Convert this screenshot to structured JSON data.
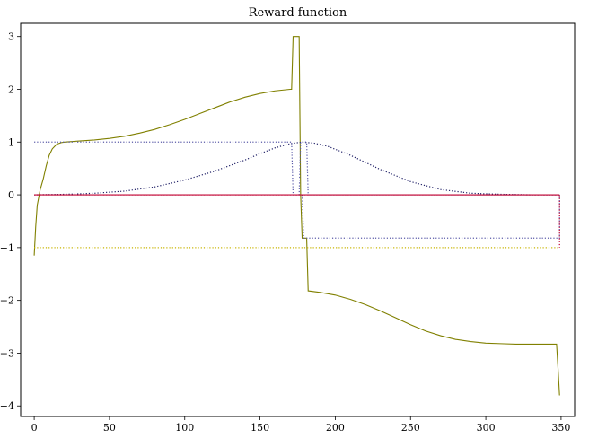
{
  "chart_data": {
    "type": "line",
    "title": "Reward function",
    "xlabel": "",
    "ylabel": "",
    "xlim": [
      -9,
      359
    ],
    "ylim": [
      -4.2,
      3.25
    ],
    "xticks": [
      0,
      50,
      100,
      150,
      200,
      250,
      300,
      350
    ],
    "yticks": [
      -4,
      -3,
      -2,
      -1,
      0,
      1,
      2,
      3
    ],
    "xtick_labels": [
      "0",
      "50",
      "100",
      "150",
      "200",
      "250",
      "300",
      "350"
    ],
    "ytick_labels": [
      "−4",
      "−3",
      "−2",
      "−1",
      "0",
      "1",
      "2",
      "3"
    ],
    "grid": false,
    "legend": "none",
    "series": [
      {
        "style": "solid",
        "color": "#808000",
        "points": [
          [
            0,
            -1.15
          ],
          [
            1,
            -0.6
          ],
          [
            2,
            -0.2
          ],
          [
            4,
            0.1
          ],
          [
            6,
            0.3
          ],
          [
            8,
            0.55
          ],
          [
            10,
            0.75
          ],
          [
            12,
            0.87
          ],
          [
            15,
            0.96
          ],
          [
            18,
            0.99
          ],
          [
            20,
            1.0
          ],
          [
            30,
            1.02
          ],
          [
            40,
            1.04
          ],
          [
            50,
            1.07
          ],
          [
            60,
            1.11
          ],
          [
            70,
            1.17
          ],
          [
            80,
            1.24
          ],
          [
            90,
            1.33
          ],
          [
            100,
            1.43
          ],
          [
            110,
            1.54
          ],
          [
            120,
            1.65
          ],
          [
            130,
            1.76
          ],
          [
            140,
            1.85
          ],
          [
            150,
            1.92
          ],
          [
            160,
            1.97
          ],
          [
            170,
            2.0
          ],
          [
            171,
            2.0
          ],
          [
            172,
            3.0
          ],
          [
            175,
            3.0
          ],
          [
            176,
            3.0
          ],
          [
            177,
            -0.0
          ],
          [
            178,
            -0.82
          ],
          [
            180,
            -0.82
          ],
          [
            181,
            -0.82
          ],
          [
            182,
            -1.82
          ],
          [
            190,
            -1.85
          ],
          [
            200,
            -1.9
          ],
          [
            210,
            -1.98
          ],
          [
            220,
            -2.08
          ],
          [
            230,
            -2.2
          ],
          [
            240,
            -2.33
          ],
          [
            250,
            -2.46
          ],
          [
            260,
            -2.58
          ],
          [
            270,
            -2.67
          ],
          [
            280,
            -2.74
          ],
          [
            290,
            -2.78
          ],
          [
            300,
            -2.81
          ],
          [
            310,
            -2.82
          ],
          [
            320,
            -2.83
          ],
          [
            330,
            -2.83
          ],
          [
            340,
            -2.83
          ],
          [
            347,
            -2.83
          ],
          [
            348,
            -3.3
          ],
          [
            349,
            -3.8
          ]
        ]
      },
      {
        "style": "dotted",
        "color": "#1f1f66",
        "points": [
          [
            0,
            0.0
          ],
          [
            20,
            0.01
          ],
          [
            40,
            0.03
          ],
          [
            60,
            0.07
          ],
          [
            80,
            0.15
          ],
          [
            100,
            0.28
          ],
          [
            120,
            0.45
          ],
          [
            140,
            0.66
          ],
          [
            150,
            0.78
          ],
          [
            160,
            0.89
          ],
          [
            170,
            0.97
          ],
          [
            178,
            1.0
          ],
          [
            186,
            0.98
          ],
          [
            195,
            0.92
          ],
          [
            210,
            0.75
          ],
          [
            230,
            0.48
          ],
          [
            250,
            0.25
          ],
          [
            270,
            0.1
          ],
          [
            290,
            0.03
          ],
          [
            310,
            0.01
          ],
          [
            330,
            0.0
          ],
          [
            349,
            0.0
          ]
        ]
      },
      {
        "style": "dotted",
        "color": "#5a5aa8",
        "points": [
          [
            0,
            1.0
          ],
          [
            171,
            1.0
          ],
          [
            172,
            0.0
          ],
          [
            176,
            0.0
          ],
          [
            177,
            1.0
          ],
          [
            181,
            1.0
          ],
          [
            182,
            0.0
          ],
          [
            349,
            0.0
          ]
        ]
      },
      {
        "style": "dotted",
        "color": "#5a5aa8",
        "points": [
          [
            178,
            0.0
          ],
          [
            179,
            -0.82
          ],
          [
            349,
            -0.82
          ],
          [
            349,
            0.0
          ]
        ]
      },
      {
        "style": "dotted",
        "color": "#c8b400",
        "points": [
          [
            0,
            -1.0
          ],
          [
            349,
            -1.0
          ]
        ]
      },
      {
        "style": "dotted",
        "color": "#c00030",
        "points": [
          [
            0,
            0.0
          ],
          [
            349,
            0.0
          ],
          [
            349,
            -1.0
          ]
        ]
      },
      {
        "style": "solid",
        "color": "#c00030",
        "points": [
          [
            0,
            0.0
          ],
          [
            349,
            0.0
          ]
        ]
      }
    ]
  }
}
